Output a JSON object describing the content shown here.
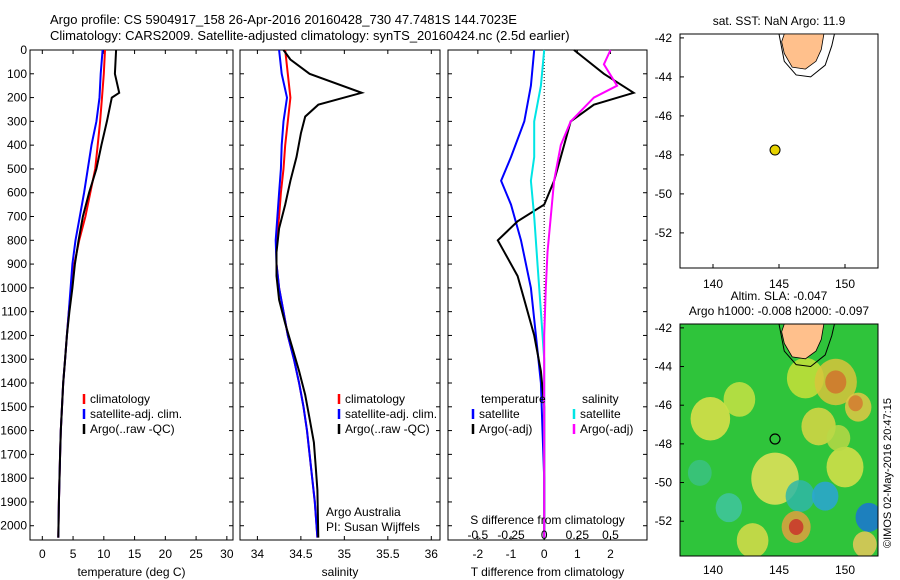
{
  "header": {
    "line1": "Argo profile: CS 5904917_158 26-Apr-2016 20160428_730 47.7481S 144.7023E",
    "line2": "Climatology: CARS2009. Satellite-adjusted climatology: synTS_20160424.nc (2.5d earlier)"
  },
  "credit": {
    "org": "Argo Australia",
    "pi": "PI: Susan Wijffels",
    "stamp": "©IMOS 02-May-2016 20:47:15"
  },
  "colors": {
    "climatology": "#ff0000",
    "satellite": "#0000ff",
    "argo": "#000000",
    "salinity_satellite": "#00e5e5",
    "salinity_argo": "#ff00ff",
    "land": "#ffc08c"
  },
  "chart_data": [
    {
      "type": "line",
      "id": "temperature",
      "xlabel": "temperature (deg C)",
      "ylabel": "",
      "xlim": [
        -2,
        31
      ],
      "ylim": [
        2060,
        0
      ],
      "xticks": [
        0,
        5,
        10,
        15,
        20,
        25,
        30
      ],
      "yticks": [
        0,
        100,
        200,
        300,
        400,
        500,
        600,
        700,
        800,
        900,
        1000,
        1100,
        1200,
        1300,
        1400,
        1500,
        1600,
        1700,
        1800,
        1900,
        2000
      ],
      "legend": [
        "climatology",
        "satellite-adj. clim.",
        "Argo(..raw -QC)"
      ],
      "series": [
        {
          "name": "climatology",
          "color": "#ff0000",
          "points": [
            [
              10.2,
              0
            ],
            [
              10.0,
              100
            ],
            [
              9.7,
              200
            ],
            [
              9.4,
              300
            ],
            [
              9.0,
              400
            ],
            [
              8.6,
              500
            ],
            [
              7.8,
              600
            ],
            [
              7.0,
              700
            ],
            [
              6.0,
              800
            ],
            [
              5.2,
              900
            ],
            [
              4.7,
              1000
            ],
            [
              4.3,
              1100
            ],
            [
              4.0,
              1200
            ],
            [
              3.7,
              1300
            ],
            [
              3.4,
              1400
            ],
            [
              3.2,
              1500
            ],
            [
              3.0,
              1600
            ],
            [
              2.9,
              1700
            ],
            [
              2.8,
              1800
            ],
            [
              2.7,
              1900
            ],
            [
              2.6,
              2050
            ]
          ]
        },
        {
          "name": "satellite-adj. clim.",
          "color": "#0000ff",
          "points": [
            [
              9.8,
              0
            ],
            [
              9.5,
              100
            ],
            [
              9.3,
              200
            ],
            [
              8.8,
              300
            ],
            [
              8.0,
              400
            ],
            [
              7.4,
              500
            ],
            [
              6.8,
              600
            ],
            [
              6.1,
              700
            ],
            [
              5.4,
              800
            ],
            [
              4.9,
              900
            ],
            [
              4.6,
              1000
            ],
            [
              4.3,
              1100
            ],
            [
              4.0,
              1200
            ],
            [
              3.7,
              1300
            ],
            [
              3.4,
              1400
            ],
            [
              3.2,
              1500
            ],
            [
              3.0,
              1600
            ],
            [
              2.9,
              1700
            ],
            [
              2.8,
              1800
            ],
            [
              2.7,
              1900
            ],
            [
              2.6,
              2050
            ]
          ]
        },
        {
          "name": "Argo(..raw -QC)",
          "color": "#000000",
          "points": [
            [
              12.0,
              0
            ],
            [
              11.8,
              100
            ],
            [
              12.5,
              180
            ],
            [
              11.3,
              200
            ],
            [
              10.5,
              300
            ],
            [
              9.6,
              400
            ],
            [
              8.8,
              500
            ],
            [
              7.6,
              600
            ],
            [
              6.6,
              700
            ],
            [
              5.9,
              800
            ],
            [
              5.3,
              900
            ],
            [
              4.9,
              1000
            ],
            [
              4.4,
              1100
            ],
            [
              4.0,
              1200
            ],
            [
              3.7,
              1300
            ],
            [
              3.4,
              1400
            ],
            [
              3.2,
              1500
            ],
            [
              3.0,
              1600
            ],
            [
              2.9,
              1700
            ],
            [
              2.8,
              1800
            ],
            [
              2.7,
              1900
            ],
            [
              2.6,
              2050
            ]
          ]
        }
      ]
    },
    {
      "type": "line",
      "id": "salinity",
      "xlabel": "salinity",
      "ylabel": "",
      "xlim": [
        33.8,
        36.1
      ],
      "ylim": [
        2060,
        0
      ],
      "xticks": [
        34,
        34.5,
        35,
        35.5,
        36
      ],
      "legend": [
        "climatology",
        "satellite-adj. clim.",
        "Argo(..raw -QC)"
      ],
      "series": [
        {
          "name": "climatology",
          "color": "#ff0000",
          "points": [
            [
              34.32,
              0
            ],
            [
              34.35,
              100
            ],
            [
              34.38,
              200
            ],
            [
              34.35,
              300
            ],
            [
              34.32,
              400
            ],
            [
              34.3,
              500
            ],
            [
              34.27,
              600
            ],
            [
              34.25,
              700
            ],
            [
              34.22,
              800
            ],
            [
              34.22,
              900
            ],
            [
              34.25,
              1000
            ],
            [
              34.3,
              1100
            ],
            [
              34.35,
              1200
            ],
            [
              34.42,
              1300
            ],
            [
              34.48,
              1400
            ],
            [
              34.53,
              1500
            ],
            [
              34.57,
              1600
            ],
            [
              34.6,
              1700
            ],
            [
              34.63,
              1800
            ],
            [
              34.66,
              1900
            ],
            [
              34.69,
              2050
            ]
          ]
        },
        {
          "name": "satellite-adj. clim.",
          "color": "#0000ff",
          "points": [
            [
              34.25,
              0
            ],
            [
              34.28,
              100
            ],
            [
              34.34,
              200
            ],
            [
              34.3,
              300
            ],
            [
              34.28,
              400
            ],
            [
              34.27,
              500
            ],
            [
              34.25,
              600
            ],
            [
              34.23,
              700
            ],
            [
              34.21,
              800
            ],
            [
              34.22,
              900
            ],
            [
              34.25,
              1000
            ],
            [
              34.3,
              1100
            ],
            [
              34.35,
              1200
            ],
            [
              34.42,
              1300
            ],
            [
              34.48,
              1400
            ],
            [
              34.53,
              1500
            ],
            [
              34.57,
              1600
            ],
            [
              34.6,
              1700
            ],
            [
              34.63,
              1800
            ],
            [
              34.66,
              1900
            ],
            [
              34.69,
              2050
            ]
          ]
        },
        {
          "name": "Argo(..raw -QC)",
          "color": "#000000",
          "points": [
            [
              34.3,
              0
            ],
            [
              34.38,
              40
            ],
            [
              34.6,
              100
            ],
            [
              35.2,
              180
            ],
            [
              34.7,
              230
            ],
            [
              34.55,
              280
            ],
            [
              34.5,
              350
            ],
            [
              34.45,
              450
            ],
            [
              34.38,
              550
            ],
            [
              34.32,
              650
            ],
            [
              34.25,
              750
            ],
            [
              34.22,
              850
            ],
            [
              34.22,
              950
            ],
            [
              34.25,
              1050
            ],
            [
              34.32,
              1150
            ],
            [
              34.4,
              1250
            ],
            [
              34.48,
              1350
            ],
            [
              34.55,
              1450
            ],
            [
              34.6,
              1550
            ],
            [
              34.65,
              1650
            ],
            [
              34.67,
              1750
            ],
            [
              34.69,
              1850
            ],
            [
              34.7,
              2050
            ]
          ]
        }
      ]
    },
    {
      "type": "line",
      "id": "difference",
      "xlabel": "T difference from climatology",
      "top_label": "S difference from climatology",
      "ylabel": "",
      "xlim": [
        -2.9,
        3.1
      ],
      "ylim": [
        2060,
        0
      ],
      "xticks": [
        -2,
        -1,
        0,
        1,
        2
      ],
      "sticks": [
        "-0.5",
        "-0.25",
        "0",
        "0.25",
        "0.5"
      ],
      "sticks_x": [
        -2,
        -1,
        0,
        1,
        2
      ],
      "zero_line": true,
      "legend_groups": [
        {
          "title": "temperature",
          "items": [
            "satellite",
            "Argo(-adj)"
          ]
        },
        {
          "title": "salinity",
          "items": [
            "satellite",
            "Argo(-adj)"
          ]
        }
      ],
      "series": [
        {
          "name": "temperature satellite",
          "color": "#0000ff",
          "points": [
            [
              -0.3,
              0
            ],
            [
              -0.4,
              150
            ],
            [
              -0.6,
              300
            ],
            [
              -1.0,
              450
            ],
            [
              -1.3,
              550
            ],
            [
              -1.0,
              650
            ],
            [
              -0.7,
              800
            ],
            [
              -0.4,
              1000
            ],
            [
              -0.25,
              1200
            ],
            [
              -0.1,
              1400
            ],
            [
              -0.05,
              1600
            ],
            [
              0,
              1800
            ],
            [
              0,
              2050
            ]
          ]
        },
        {
          "name": "temperature Argo(-adj)",
          "color": "#000000",
          "points": [
            [
              0.9,
              0
            ],
            [
              1.8,
              100
            ],
            [
              2.7,
              180
            ],
            [
              1.5,
              230
            ],
            [
              0.8,
              300
            ],
            [
              0.5,
              450
            ],
            [
              0.3,
              550
            ],
            [
              0.0,
              650
            ],
            [
              -0.8,
              720
            ],
            [
              -1.4,
              800
            ],
            [
              -1.2,
              850
            ],
            [
              -0.8,
              950
            ],
            [
              -0.6,
              1050
            ],
            [
              -0.3,
              1200
            ],
            [
              -0.1,
              1350
            ],
            [
              0,
              1500
            ],
            [
              0,
              1700
            ],
            [
              0,
              2050
            ]
          ]
        },
        {
          "name": "salinity satellite",
          "color": "#00e5e5",
          "points": [
            [
              0,
              0
            ],
            [
              -0.1,
              150
            ],
            [
              -0.3,
              300
            ],
            [
              -0.3,
              450
            ],
            [
              -0.4,
              550
            ],
            [
              -0.3,
              700
            ],
            [
              -0.2,
              900
            ],
            [
              -0.1,
              1100
            ],
            [
              0,
              1300
            ],
            [
              0,
              1500
            ],
            [
              0,
              1700
            ],
            [
              0,
              2050
            ]
          ]
        },
        {
          "name": "salinity Argo(-adj)",
          "color": "#ff00ff",
          "points": [
            [
              2.0,
              0
            ],
            [
              1.8,
              60
            ],
            [
              2.2,
              150
            ],
            [
              1.5,
              200
            ],
            [
              0.8,
              300
            ],
            [
              0.5,
              400
            ],
            [
              0.3,
              550
            ],
            [
              0.2,
              700
            ],
            [
              0.1,
              850
            ],
            [
              0.05,
              1000
            ],
            [
              0,
              1200
            ],
            [
              0,
              1400
            ],
            [
              0,
              2050
            ]
          ]
        }
      ]
    },
    {
      "type": "scatter",
      "id": "sst_map",
      "title": "sat. SST: NaN Argo: 11.9",
      "xlim": [
        137.5,
        152.5
      ],
      "ylim": [
        -53.8,
        -41.8
      ],
      "xticks": [
        140,
        145,
        150
      ],
      "yticks": [
        -42,
        -44,
        -46,
        -48,
        -50,
        -52
      ],
      "points": [
        {
          "lon": 144.7,
          "lat": -47.75,
          "color": "#e6d200"
        }
      ]
    },
    {
      "type": "heatmap",
      "id": "sla_map",
      "title": "Altim. SLA: -0.047",
      "subtitle": "Argo h1000: -0.008 h2000: -0.097",
      "xlim": [
        137.5,
        152.5
      ],
      "ylim": [
        -53.8,
        -41.8
      ],
      "xticks": [
        140,
        145,
        150
      ],
      "yticks": [
        -42,
        -44,
        -46,
        -48,
        -50,
        -52
      ],
      "points": [
        {
          "lon": 144.7,
          "lat": -47.75
        }
      ]
    }
  ]
}
